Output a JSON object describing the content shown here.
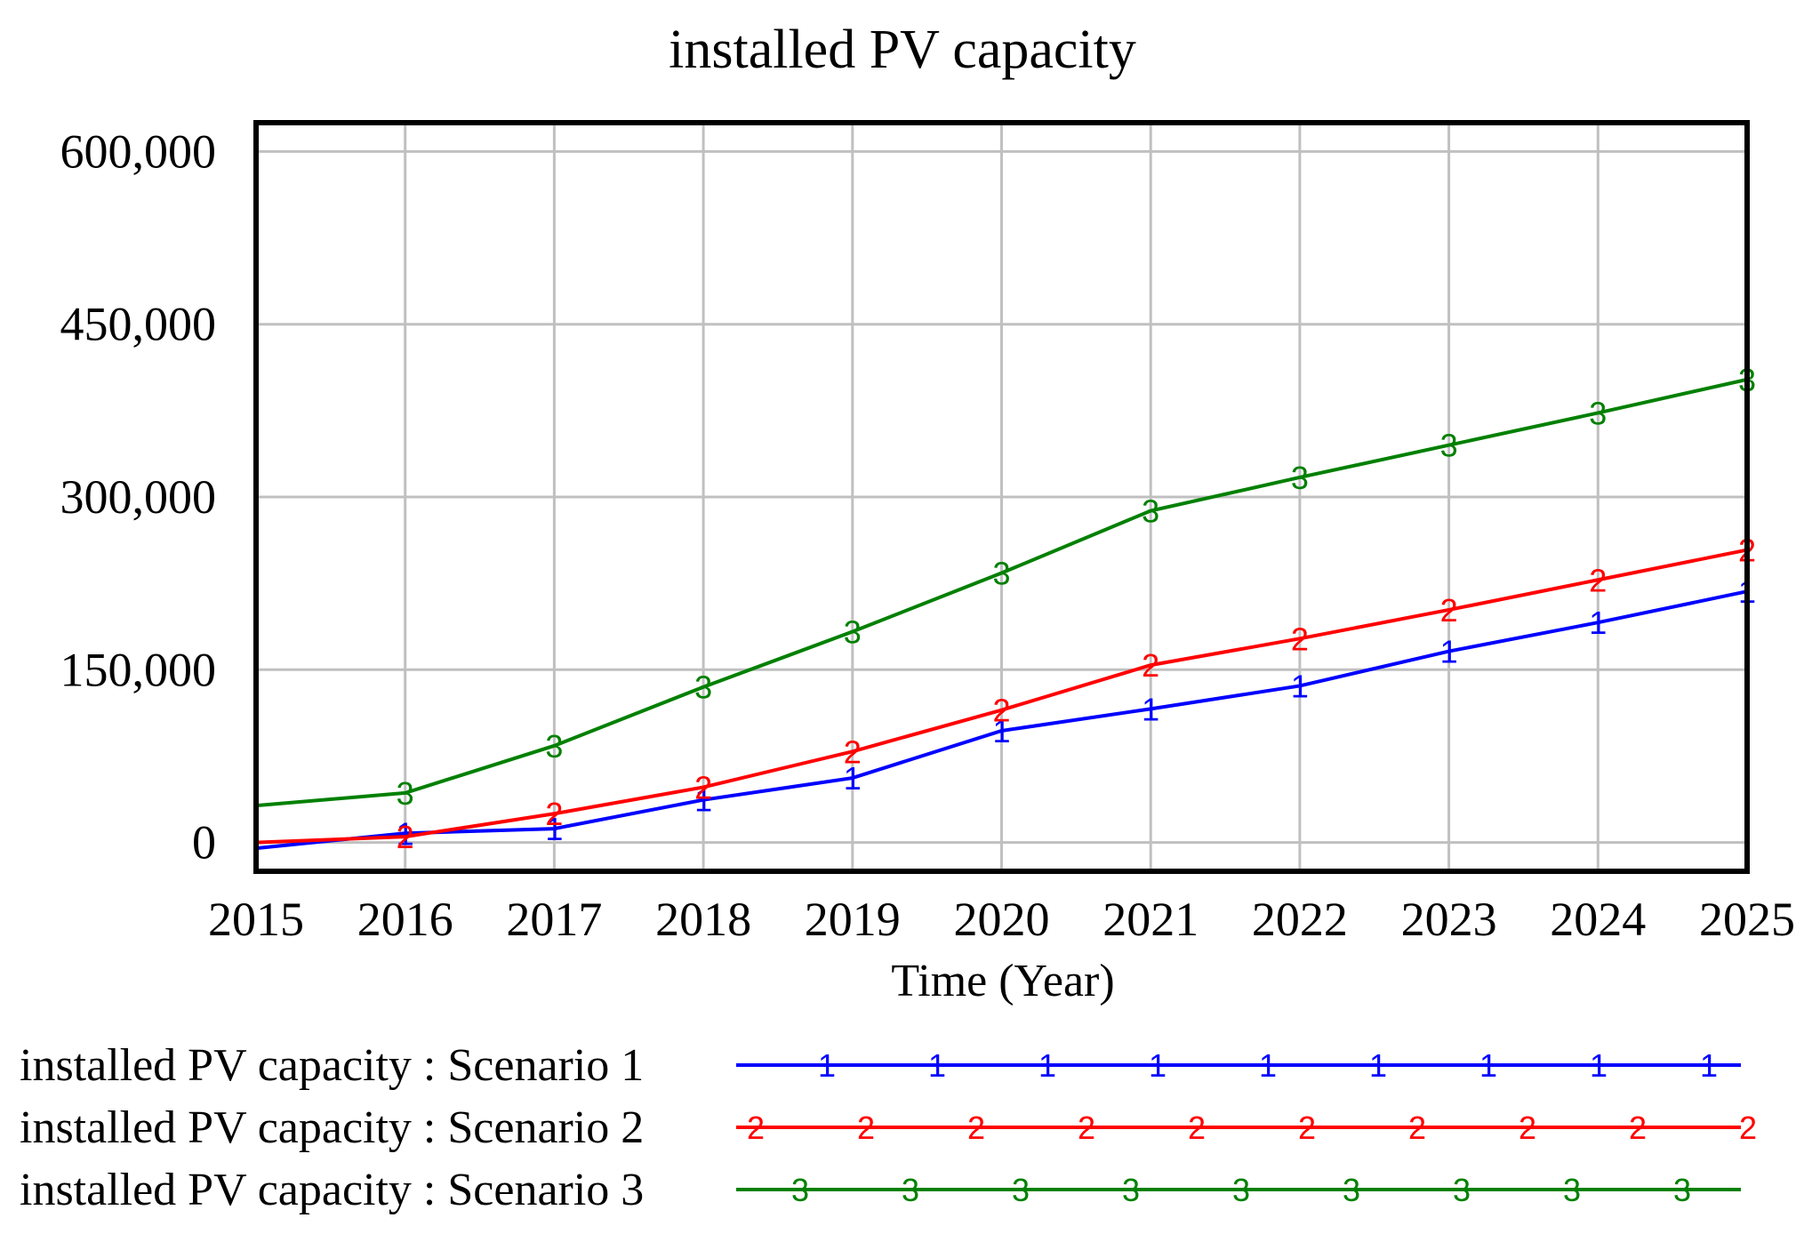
{
  "chart_data": {
    "type": "line",
    "title": "installed PV capacity",
    "xlabel": "Time (Year)",
    "ylabel": "",
    "x": [
      2015,
      2016,
      2017,
      2018,
      2019,
      2020,
      2021,
      2022,
      2023,
      2024,
      2025
    ],
    "x_tick_labels": [
      "2015",
      "2016",
      "2017",
      "2018",
      "2019",
      "2020",
      "2021",
      "2022",
      "2023",
      "2024",
      "2025"
    ],
    "ylim": [
      -25000,
      625000
    ],
    "y_ticks": [
      0,
      150000,
      300000,
      450000,
      600000
    ],
    "y_tick_labels": [
      "0",
      "150,000",
      "300,000",
      "450,000",
      "600,000"
    ],
    "grid": true,
    "legend_position": "bottom",
    "series": [
      {
        "name": "installed PV capacity : Scenario 1",
        "marker": "1",
        "color": "#0000ff",
        "values": [
          -5000,
          8000,
          12000,
          37000,
          56000,
          97000,
          116000,
          136000,
          166000,
          191000,
          218000
        ]
      },
      {
        "name": "installed PV capacity : Scenario 2",
        "marker": "2",
        "color": "#ff0000",
        "values": [
          0,
          5000,
          25000,
          48000,
          79000,
          115000,
          154000,
          177000,
          202000,
          228000,
          254000
        ]
      },
      {
        "name": "installed PV capacity : Scenario 3",
        "marker": "3",
        "color": "#008000",
        "values": [
          32000,
          43000,
          84000,
          135000,
          183000,
          234000,
          288000,
          317000,
          345000,
          373000,
          402000
        ]
      }
    ]
  }
}
